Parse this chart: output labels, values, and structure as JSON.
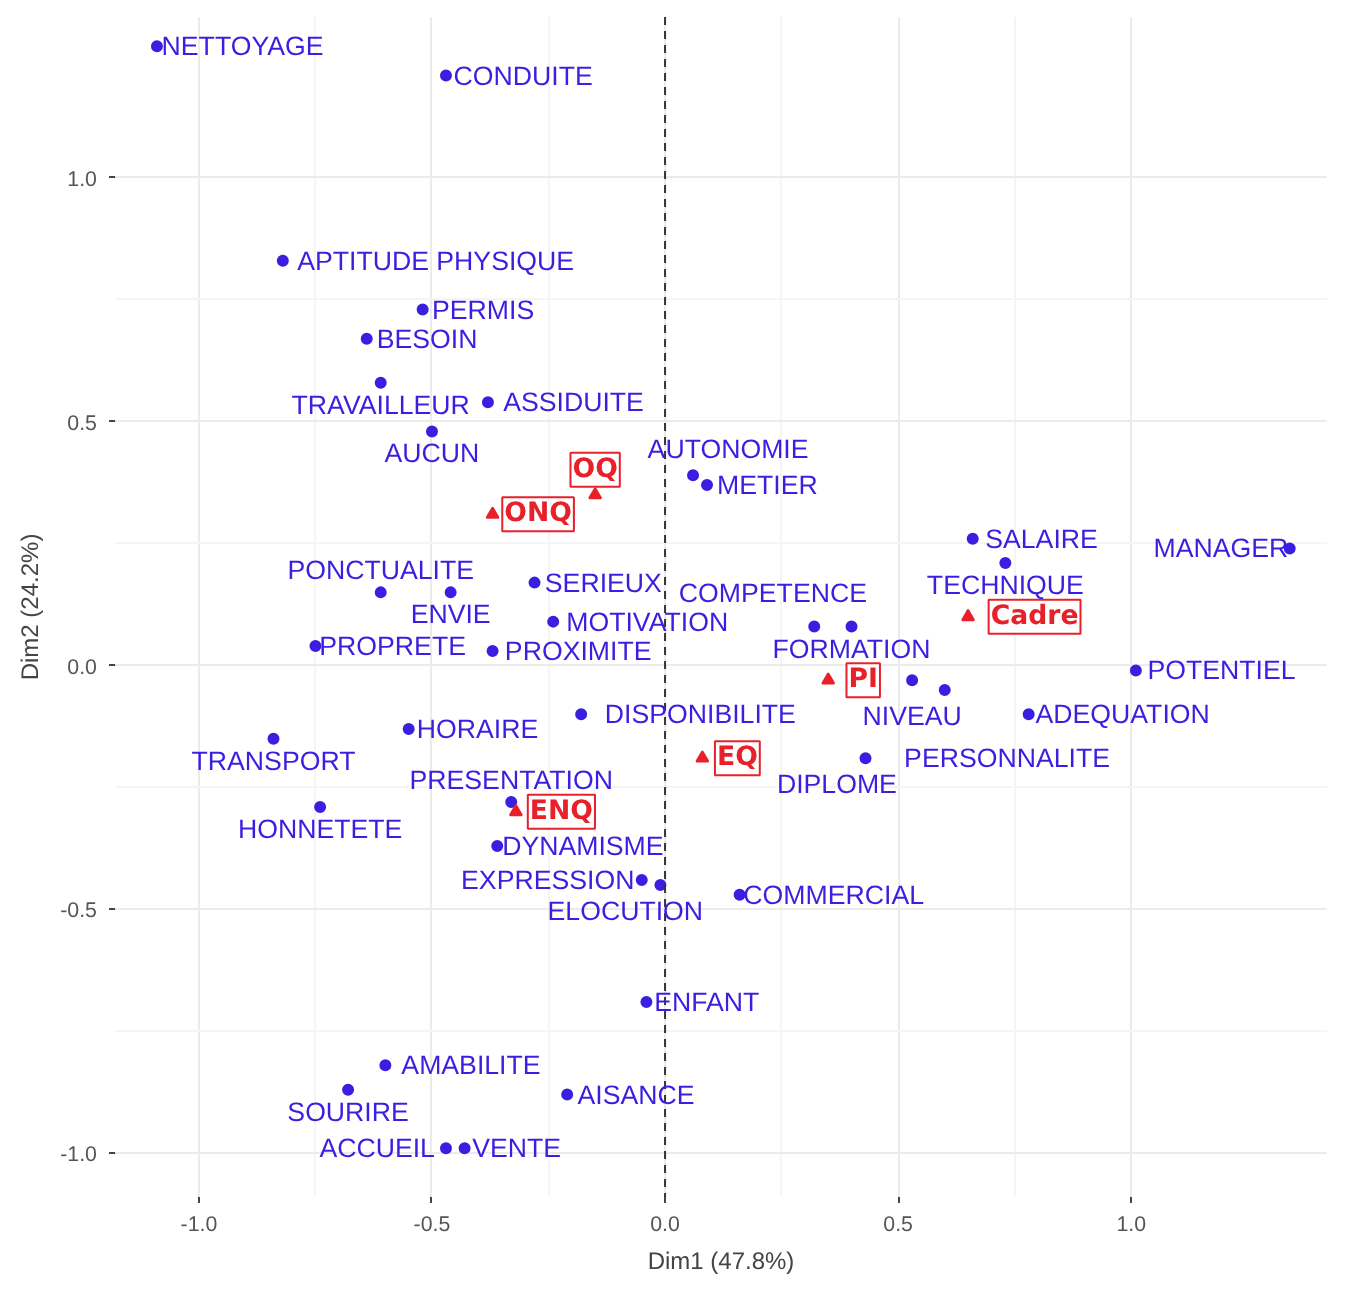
{
  "chart_data": {
    "type": "scatter",
    "xlabel": "Dim1 (47.8%)",
    "ylabel": "Dim2 (24.2%)",
    "xlim": [
      -1.18,
      1.42
    ],
    "ylim": [
      -1.09,
      1.33
    ],
    "xticks": [
      {
        "value": -1,
        "label": "-1.0"
      },
      {
        "value": -0.5,
        "label": "-0.5"
      },
      {
        "value": 0,
        "label": "0.0"
      },
      {
        "value": 0.5,
        "label": "0.5"
      },
      {
        "value": 1,
        "label": "1.0"
      }
    ],
    "yticks": [
      {
        "value": -1,
        "label": "-1.0"
      },
      {
        "value": -0.5,
        "label": "-0.5"
      },
      {
        "value": 0,
        "label": "0.0"
      },
      {
        "value": 0.5,
        "label": "0.5"
      },
      {
        "value": 1,
        "label": "1.0"
      }
    ],
    "grid": true,
    "ref_lines": [
      {
        "axis": "x",
        "value": 0,
        "line_style": "dashed",
        "color": "#333333"
      }
    ],
    "series": [
      {
        "color": "#3a1fe0",
        "marker": "circle",
        "x": [
          -1.09,
          -0.47,
          -0.82,
          -0.52,
          -0.64,
          -0.61,
          -0.38,
          -0.5,
          0.06,
          0.09,
          -0.28,
          -0.46,
          -0.61,
          -0.24,
          -0.75,
          -0.37,
          -0.55,
          -0.18,
          -0.84,
          -0.33,
          -0.74,
          -0.36,
          -0.01,
          -0.05,
          0.16,
          -0.04,
          -0.6,
          -0.68,
          -0.21,
          -0.43,
          -0.47,
          0.66,
          0.73,
          1.34,
          0.4,
          0.32,
          0.53,
          0.6,
          1.01,
          0.78,
          0.43
        ],
        "values": [
          1.27,
          1.21,
          0.83,
          0.73,
          0.67,
          0.58,
          0.54,
          0.48,
          0.39,
          0.37,
          0.17,
          0.15,
          0.15,
          0.09,
          0.04,
          0.03,
          -0.13,
          -0.1,
          -0.15,
          -0.28,
          -0.29,
          -0.37,
          -0.45,
          -0.44,
          -0.47,
          -0.69,
          -0.82,
          -0.87,
          -0.88,
          -0.99,
          -0.99,
          0.26,
          0.21,
          0.24,
          0.08,
          0.08,
          -0.03,
          -0.05,
          -0.01,
          -0.1,
          -0.19
        ]
      },
      {
        "color": "#e8202a",
        "marker": "triangle",
        "x": [
          -0.37,
          -0.15,
          -0.32,
          0.65,
          0.35,
          0.08
        ],
        "values": [
          0.31,
          0.35,
          -0.3,
          0.1,
          -0.03,
          -0.19
        ]
      }
    ],
    "annotations": [
      {
        "text": "ONQ",
        "x": -0.37,
        "y": 0.31
      },
      {
        "text": "OQ",
        "x": -0.15,
        "y": 0.35
      },
      {
        "text": "ENQ",
        "x": -0.32,
        "y": -0.3
      },
      {
        "text": "Cadre",
        "x": 0.65,
        "y": 0.1
      },
      {
        "text": "PI",
        "x": 0.35,
        "y": -0.03
      },
      {
        "text": "EQ",
        "x": 0.08,
        "y": -0.19
      },
      {
        "text": "NETTOYAGE",
        "x": -1.09,
        "y": 1.27
      },
      {
        "text": "CONDUITE",
        "x": -0.47,
        "y": 1.21
      },
      {
        "text": "APTITUDE PHYSIQUE",
        "x": -0.82,
        "y": 0.83
      },
      {
        "text": "PERMIS",
        "x": -0.52,
        "y": 0.73
      },
      {
        "text": "BESOIN",
        "x": -0.64,
        "y": 0.67
      },
      {
        "text": "TRAVAILLEUR",
        "x": -0.61,
        "y": 0.58
      },
      {
        "text": "ASSIDUITE",
        "x": -0.38,
        "y": 0.54
      },
      {
        "text": "AUCUN",
        "x": -0.5,
        "y": 0.48
      },
      {
        "text": "AUTONOMIE",
        "x": 0.06,
        "y": 0.39
      },
      {
        "text": "METIER",
        "x": 0.09,
        "y": 0.37
      },
      {
        "text": "SERIEUX",
        "x": -0.28,
        "y": 0.17
      },
      {
        "text": "ENVIE",
        "x": -0.46,
        "y": 0.15
      },
      {
        "text": "PONCTUALITE",
        "x": -0.61,
        "y": 0.15
      },
      {
        "text": "MOTIVATION",
        "x": -0.24,
        "y": 0.09
      },
      {
        "text": "PROPRETE",
        "x": -0.75,
        "y": 0.04
      },
      {
        "text": "PROXIMITE",
        "x": -0.37,
        "y": 0.03
      },
      {
        "text": "HORAIRE",
        "x": -0.55,
        "y": -0.13
      },
      {
        "text": "DISPONIBILITE",
        "x": -0.18,
        "y": -0.1
      },
      {
        "text": "TRANSPORT",
        "x": -0.84,
        "y": -0.15
      },
      {
        "text": "PRESENTATION",
        "x": -0.33,
        "y": -0.28
      },
      {
        "text": "HONNETETE",
        "x": -0.74,
        "y": -0.29
      },
      {
        "text": "DYNAMISME",
        "x": -0.36,
        "y": -0.37
      },
      {
        "text": "ELOCUTION",
        "x": -0.01,
        "y": -0.45
      },
      {
        "text": "EXPRESSION",
        "x": -0.05,
        "y": -0.44
      },
      {
        "text": "COMMERCIAL",
        "x": 0.16,
        "y": -0.47
      },
      {
        "text": "ENFANT",
        "x": -0.04,
        "y": -0.69
      },
      {
        "text": "AMABILITE",
        "x": -0.6,
        "y": -0.82
      },
      {
        "text": "SOURIRE",
        "x": -0.68,
        "y": -0.87
      },
      {
        "text": "AISANCE",
        "x": -0.21,
        "y": -0.88
      },
      {
        "text": "VENTE",
        "x": -0.43,
        "y": -0.99
      },
      {
        "text": "ACCUEIL",
        "x": -0.47,
        "y": -0.99
      },
      {
        "text": "SALAIRE",
        "x": 0.66,
        "y": 0.26
      },
      {
        "text": "TECHNIQUE",
        "x": 0.73,
        "y": 0.21
      },
      {
        "text": "MANAGER",
        "x": 1.34,
        "y": 0.24
      },
      {
        "text": "FORMATION",
        "x": 0.4,
        "y": 0.08
      },
      {
        "text": "COMPETENCE",
        "x": 0.32,
        "y": 0.08
      },
      {
        "text": "NIVEAU",
        "x": 0.53,
        "y": -0.03
      },
      {
        "text": "PERSONNALITE",
        "x": 0.6,
        "y": -0.05
      },
      {
        "text": "POTENTIEL",
        "x": 1.01,
        "y": -0.01
      },
      {
        "text": "ADEQUATION",
        "x": 0.78,
        "y": -0.1
      },
      {
        "text": "DIPLOME",
        "x": 0.43,
        "y": -0.19
      }
    ]
  }
}
